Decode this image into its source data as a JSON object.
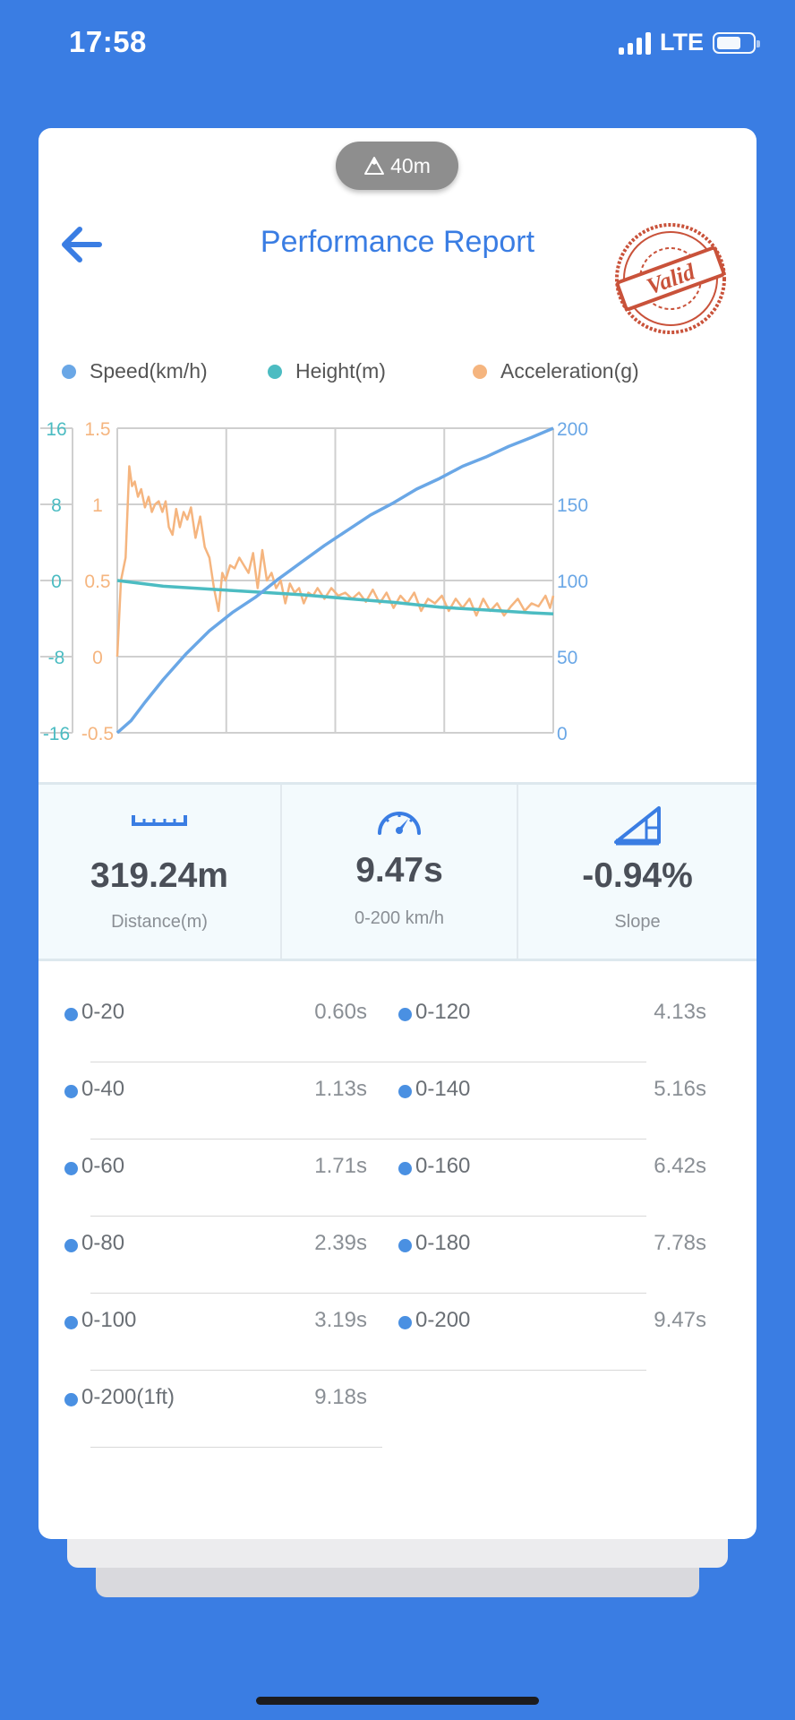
{
  "status_bar": {
    "time": "17:58",
    "network": "LTE"
  },
  "header": {
    "altitude": "40m",
    "title": "Performance Report",
    "stamp": "Valid"
  },
  "legend": [
    {
      "label": "Speed(km/h)",
      "color": "#6aa7e6"
    },
    {
      "label": "Height(m)",
      "color": "#4cbcc2"
    },
    {
      "label": "Acceleration(g)",
      "color": "#f5b57f"
    }
  ],
  "chart_data": {
    "type": "line",
    "x_range": [
      0,
      9.47
    ],
    "left_axis_height": {
      "ticks": [
        "16",
        "8",
        "0",
        "-8",
        "-16"
      ],
      "range": [
        -16,
        16
      ],
      "color": "#4cbcc2"
    },
    "left_axis_accel": {
      "ticks": [
        "1.5",
        "1",
        "0.5",
        "0",
        "-0.5"
      ],
      "range": [
        -0.5,
        1.5
      ],
      "color": "#f5b57f"
    },
    "right_axis_speed": {
      "ticks": [
        "200",
        "150",
        "100",
        "50",
        "0"
      ],
      "range": [
        0,
        200
      ],
      "color": "#6aa7e6"
    },
    "grid": true,
    "series": [
      {
        "name": "Speed(km/h)",
        "color": "#6aa7e6",
        "axis": "speed",
        "x": [
          0,
          0.3,
          0.6,
          1.0,
          1.5,
          2.0,
          2.5,
          3.0,
          3.5,
          4.0,
          4.5,
          5.0,
          5.5,
          6.0,
          6.5,
          7.0,
          7.5,
          8.0,
          8.5,
          9.0,
          9.47
        ],
        "y": [
          0,
          8,
          20,
          35,
          52,
          67,
          79,
          89,
          101,
          112,
          123,
          133,
          143,
          151,
          160,
          167,
          175,
          181,
          188,
          194,
          200
        ]
      },
      {
        "name": "Height(m)",
        "color": "#4cbcc2",
        "axis": "height",
        "x": [
          0,
          1,
          2,
          3,
          4,
          5,
          6,
          7,
          8,
          9,
          9.47
        ],
        "y": [
          0,
          -0.6,
          -0.9,
          -1.2,
          -1.5,
          -1.9,
          -2.3,
          -2.8,
          -3.1,
          -3.4,
          -3.5
        ]
      },
      {
        "name": "Acceleration(g)",
        "color": "#f5b57f",
        "axis": "accel",
        "x": [
          0,
          0.08,
          0.18,
          0.26,
          0.32,
          0.38,
          0.45,
          0.52,
          0.6,
          0.68,
          0.75,
          0.82,
          0.9,
          0.98,
          1.05,
          1.12,
          1.2,
          1.28,
          1.36,
          1.44,
          1.52,
          1.6,
          1.7,
          1.8,
          1.9,
          2.0,
          2.1,
          2.2,
          2.28,
          2.35,
          2.45,
          2.55,
          2.65,
          2.75,
          2.85,
          2.95,
          3.05,
          3.15,
          3.25,
          3.35,
          3.45,
          3.55,
          3.65,
          3.75,
          3.85,
          3.95,
          4.05,
          4.15,
          4.25,
          4.35,
          4.5,
          4.65,
          4.8,
          4.95,
          5.1,
          5.25,
          5.4,
          5.55,
          5.7,
          5.85,
          6.0,
          6.15,
          6.3,
          6.45,
          6.6,
          6.75,
          6.9,
          7.05,
          7.2,
          7.35,
          7.5,
          7.65,
          7.8,
          7.95,
          8.1,
          8.25,
          8.4,
          8.55,
          8.7,
          8.85,
          9.0,
          9.15,
          9.3,
          9.4,
          9.47
        ],
        "y": [
          0.0,
          0.5,
          0.65,
          1.25,
          1.12,
          1.15,
          1.05,
          1.1,
          0.98,
          1.05,
          0.95,
          1.0,
          1.02,
          0.95,
          1.02,
          0.85,
          0.8,
          0.97,
          0.85,
          0.95,
          0.9,
          0.98,
          0.78,
          0.92,
          0.72,
          0.65,
          0.45,
          0.3,
          0.55,
          0.5,
          0.6,
          0.58,
          0.65,
          0.6,
          0.55,
          0.68,
          0.45,
          0.7,
          0.5,
          0.55,
          0.45,
          0.5,
          0.35,
          0.48,
          0.42,
          0.45,
          0.35,
          0.42,
          0.4,
          0.45,
          0.38,
          0.45,
          0.4,
          0.42,
          0.38,
          0.42,
          0.36,
          0.44,
          0.35,
          0.42,
          0.32,
          0.4,
          0.35,
          0.42,
          0.3,
          0.38,
          0.35,
          0.4,
          0.3,
          0.38,
          0.32,
          0.38,
          0.27,
          0.38,
          0.3,
          0.35,
          0.27,
          0.33,
          0.38,
          0.3,
          0.35,
          0.33,
          0.4,
          0.32,
          0.4
        ]
      }
    ]
  },
  "stats": {
    "distance": {
      "value": "319.24m",
      "label": "Distance(m)"
    },
    "time": {
      "value": "9.47s",
      "label": "0-200 km/h"
    },
    "slope": {
      "value": "-0.94%",
      "label": "Slope"
    }
  },
  "splits_left": [
    {
      "label": "0-20",
      "time": "0.60s"
    },
    {
      "label": "0-40",
      "time": "1.13s"
    },
    {
      "label": "0-60",
      "time": "1.71s"
    },
    {
      "label": "0-80",
      "time": "2.39s"
    },
    {
      "label": "0-100",
      "time": "3.19s"
    },
    {
      "label": "0-200(1ft)",
      "time": "9.18s"
    }
  ],
  "splits_right": [
    {
      "label": "0-120",
      "time": "4.13s"
    },
    {
      "label": "0-140",
      "time": "5.16s"
    },
    {
      "label": "0-160",
      "time": "6.42s"
    },
    {
      "label": "0-180",
      "time": "7.78s"
    },
    {
      "label": "0-200",
      "time": "9.47s"
    }
  ]
}
